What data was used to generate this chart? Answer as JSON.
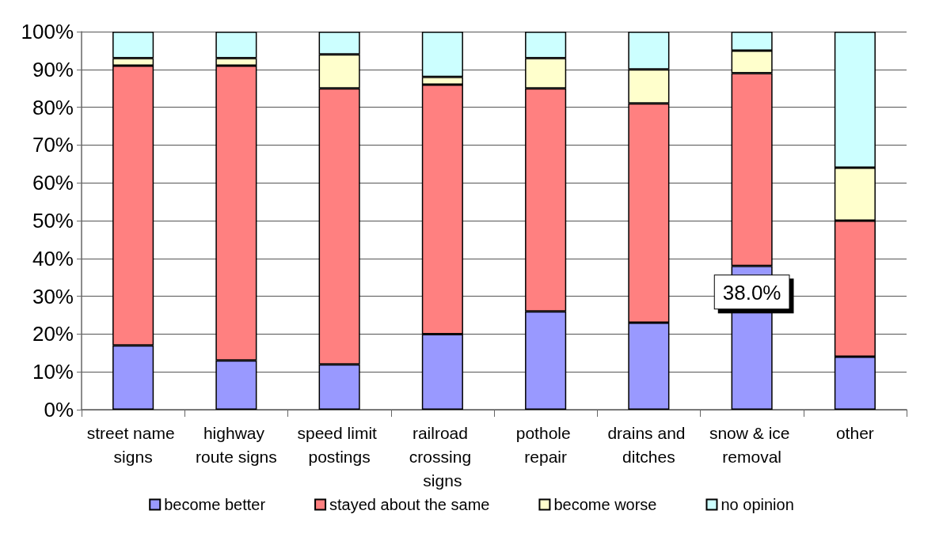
{
  "chart_data": {
    "type": "bar",
    "stacked": true,
    "categories": [
      "street name signs",
      "highway route signs",
      "speed limit postings",
      "railroad crossing signs",
      "pothole repair",
      "drains and ditches",
      "snow & ice removal",
      "other"
    ],
    "series": [
      {
        "name": "become better",
        "color": "#9999ff",
        "values": [
          17,
          13,
          12,
          20,
          26,
          23,
          38.0,
          14
        ],
        "value_labels": [
          null,
          null,
          null,
          null,
          null,
          null,
          "38.0%",
          null
        ]
      },
      {
        "name": "stayed about the same",
        "color": "#ff8080",
        "values": [
          74,
          78,
          73,
          66,
          59,
          58,
          51,
          36
        ]
      },
      {
        "name": "become worse",
        "color": "#ffffcc",
        "values": [
          2,
          2,
          9,
          2,
          8,
          9,
          6,
          14
        ]
      },
      {
        "name": "no opinion",
        "color": "#ccffff",
        "values": [
          7,
          7,
          6,
          12,
          7,
          10,
          5,
          36
        ]
      }
    ],
    "ylim": [
      0,
      100
    ],
    "yticks": [
      {
        "value": 0,
        "label": "0%"
      },
      {
        "value": 10,
        "label": "10%"
      },
      {
        "value": 20,
        "label": "20%"
      },
      {
        "value": 30,
        "label": "30%"
      },
      {
        "value": 40,
        "label": "40%"
      },
      {
        "value": 50,
        "label": "50%"
      },
      {
        "value": 60,
        "label": "60%"
      },
      {
        "value": 70,
        "label": "70%"
      },
      {
        "value": 80,
        "label": "80%"
      },
      {
        "value": 90,
        "label": "90%"
      },
      {
        "value": 100,
        "label": "100%"
      }
    ],
    "grid": "y",
    "legend": "bottom"
  }
}
